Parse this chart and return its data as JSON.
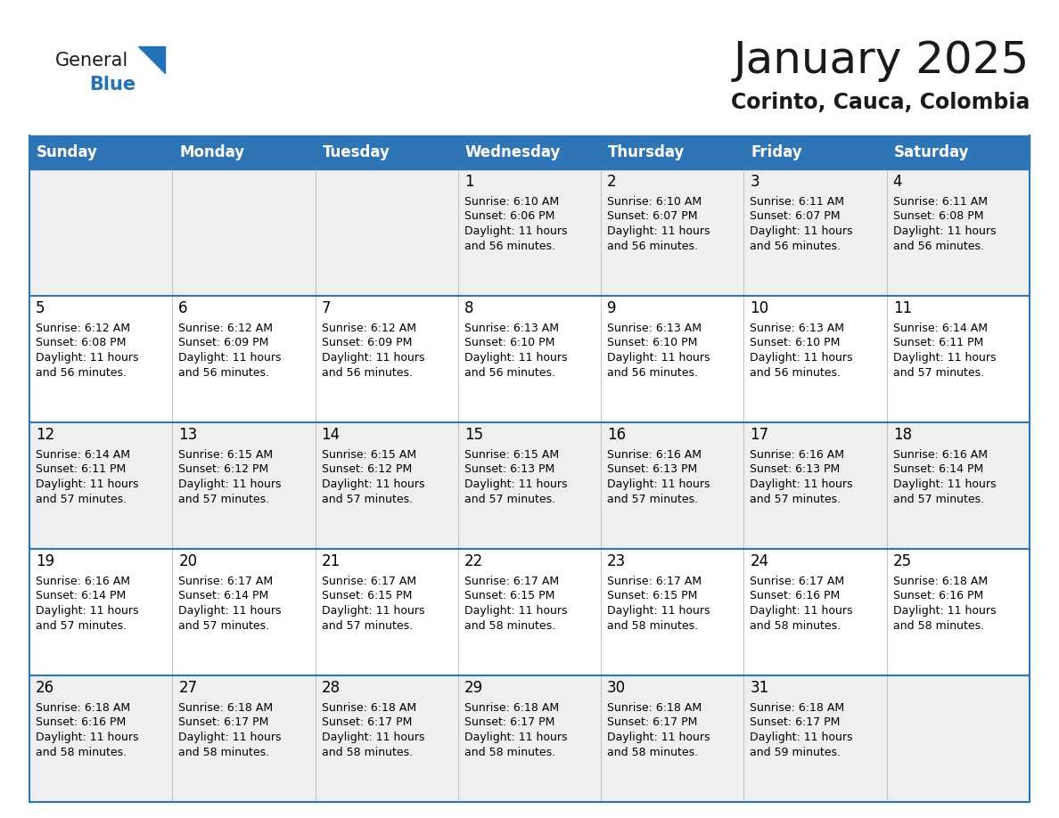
{
  "title": "January 2025",
  "subtitle": "Corinto, Cauca, Colombia",
  "days_of_week": [
    "Sunday",
    "Monday",
    "Tuesday",
    "Wednesday",
    "Thursday",
    "Friday",
    "Saturday"
  ],
  "header_bg": "#2E75B6",
  "header_text": "#FFFFFF",
  "row_bg_odd": "#EFEFEF",
  "row_bg_even": "#FFFFFF",
  "cell_text": "#000000",
  "border_color": "#2E75B6",
  "title_color": "#1A1A1A",
  "subtitle_color": "#1A1A1A",
  "logo_general_color": "#1A1A1A",
  "logo_blue_color": "#2272B5",
  "calendar_data": [
    [
      null,
      null,
      null,
      {
        "day": 1,
        "sunrise": "6:10 AM",
        "sunset": "6:06 PM",
        "daylight": "11 hours\nand 56 minutes."
      },
      {
        "day": 2,
        "sunrise": "6:10 AM",
        "sunset": "6:07 PM",
        "daylight": "11 hours\nand 56 minutes."
      },
      {
        "day": 3,
        "sunrise": "6:11 AM",
        "sunset": "6:07 PM",
        "daylight": "11 hours\nand 56 minutes."
      },
      {
        "day": 4,
        "sunrise": "6:11 AM",
        "sunset": "6:08 PM",
        "daylight": "11 hours\nand 56 minutes."
      }
    ],
    [
      {
        "day": 5,
        "sunrise": "6:12 AM",
        "sunset": "6:08 PM",
        "daylight": "11 hours\nand 56 minutes."
      },
      {
        "day": 6,
        "sunrise": "6:12 AM",
        "sunset": "6:09 PM",
        "daylight": "11 hours\nand 56 minutes."
      },
      {
        "day": 7,
        "sunrise": "6:12 AM",
        "sunset": "6:09 PM",
        "daylight": "11 hours\nand 56 minutes."
      },
      {
        "day": 8,
        "sunrise": "6:13 AM",
        "sunset": "6:10 PM",
        "daylight": "11 hours\nand 56 minutes."
      },
      {
        "day": 9,
        "sunrise": "6:13 AM",
        "sunset": "6:10 PM",
        "daylight": "11 hours\nand 56 minutes."
      },
      {
        "day": 10,
        "sunrise": "6:13 AM",
        "sunset": "6:10 PM",
        "daylight": "11 hours\nand 56 minutes."
      },
      {
        "day": 11,
        "sunrise": "6:14 AM",
        "sunset": "6:11 PM",
        "daylight": "11 hours\nand 57 minutes."
      }
    ],
    [
      {
        "day": 12,
        "sunrise": "6:14 AM",
        "sunset": "6:11 PM",
        "daylight": "11 hours\nand 57 minutes."
      },
      {
        "day": 13,
        "sunrise": "6:15 AM",
        "sunset": "6:12 PM",
        "daylight": "11 hours\nand 57 minutes."
      },
      {
        "day": 14,
        "sunrise": "6:15 AM",
        "sunset": "6:12 PM",
        "daylight": "11 hours\nand 57 minutes."
      },
      {
        "day": 15,
        "sunrise": "6:15 AM",
        "sunset": "6:13 PM",
        "daylight": "11 hours\nand 57 minutes."
      },
      {
        "day": 16,
        "sunrise": "6:16 AM",
        "sunset": "6:13 PM",
        "daylight": "11 hours\nand 57 minutes."
      },
      {
        "day": 17,
        "sunrise": "6:16 AM",
        "sunset": "6:13 PM",
        "daylight": "11 hours\nand 57 minutes."
      },
      {
        "day": 18,
        "sunrise": "6:16 AM",
        "sunset": "6:14 PM",
        "daylight": "11 hours\nand 57 minutes."
      }
    ],
    [
      {
        "day": 19,
        "sunrise": "6:16 AM",
        "sunset": "6:14 PM",
        "daylight": "11 hours\nand 57 minutes."
      },
      {
        "day": 20,
        "sunrise": "6:17 AM",
        "sunset": "6:14 PM",
        "daylight": "11 hours\nand 57 minutes."
      },
      {
        "day": 21,
        "sunrise": "6:17 AM",
        "sunset": "6:15 PM",
        "daylight": "11 hours\nand 57 minutes."
      },
      {
        "day": 22,
        "sunrise": "6:17 AM",
        "sunset": "6:15 PM",
        "daylight": "11 hours\nand 58 minutes."
      },
      {
        "day": 23,
        "sunrise": "6:17 AM",
        "sunset": "6:15 PM",
        "daylight": "11 hours\nand 58 minutes."
      },
      {
        "day": 24,
        "sunrise": "6:17 AM",
        "sunset": "6:16 PM",
        "daylight": "11 hours\nand 58 minutes."
      },
      {
        "day": 25,
        "sunrise": "6:18 AM",
        "sunset": "6:16 PM",
        "daylight": "11 hours\nand 58 minutes."
      }
    ],
    [
      {
        "day": 26,
        "sunrise": "6:18 AM",
        "sunset": "6:16 PM",
        "daylight": "11 hours\nand 58 minutes."
      },
      {
        "day": 27,
        "sunrise": "6:18 AM",
        "sunset": "6:17 PM",
        "daylight": "11 hours\nand 58 minutes."
      },
      {
        "day": 28,
        "sunrise": "6:18 AM",
        "sunset": "6:17 PM",
        "daylight": "11 hours\nand 58 minutes."
      },
      {
        "day": 29,
        "sunrise": "6:18 AM",
        "sunset": "6:17 PM",
        "daylight": "11 hours\nand 58 minutes."
      },
      {
        "day": 30,
        "sunrise": "6:18 AM",
        "sunset": "6:17 PM",
        "daylight": "11 hours\nand 58 minutes."
      },
      {
        "day": 31,
        "sunrise": "6:18 AM",
        "sunset": "6:17 PM",
        "daylight": "11 hours\nand 59 minutes."
      },
      null
    ]
  ],
  "figsize": [
    11.88,
    9.18
  ],
  "dpi": 100
}
